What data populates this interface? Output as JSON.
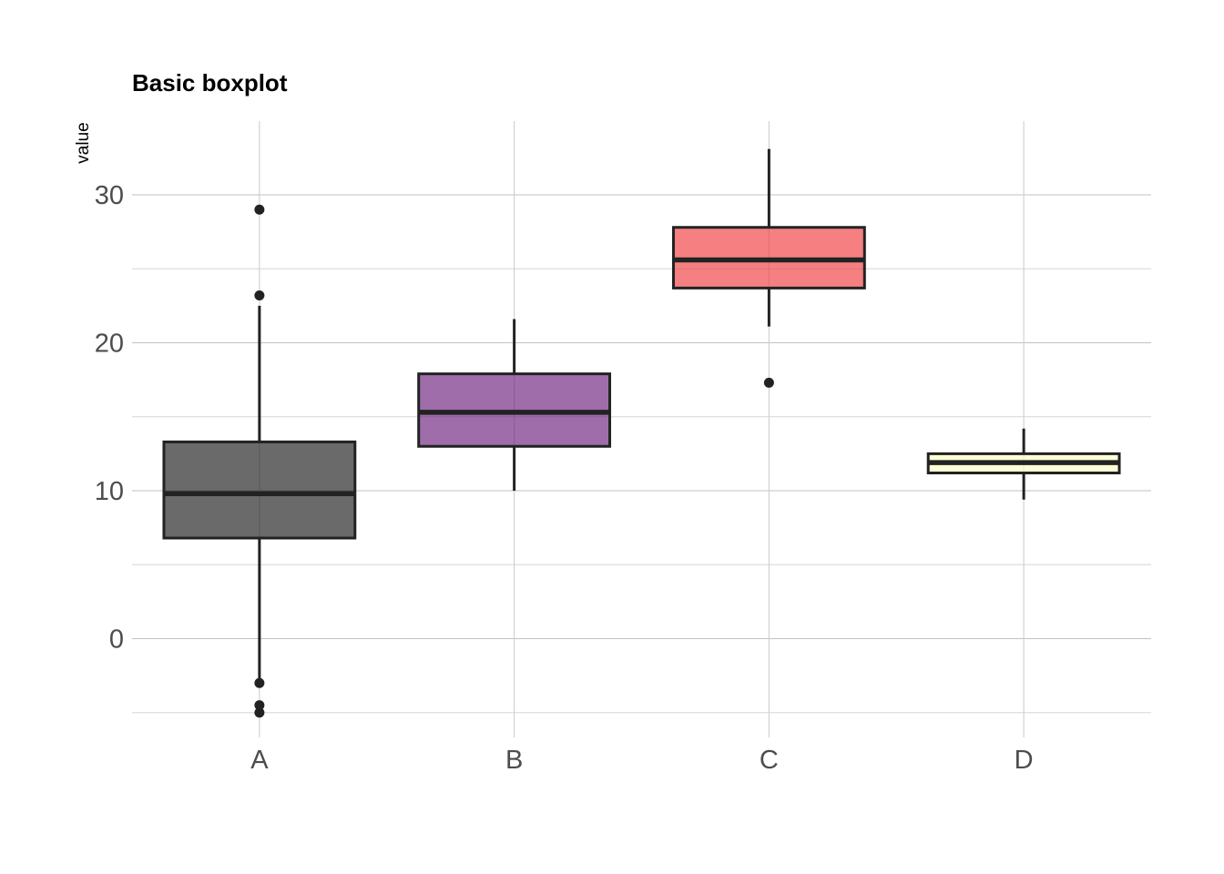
{
  "chart_data": {
    "type": "boxplot",
    "title": "Basic boxplot",
    "xlabel": "",
    "ylabel": "value",
    "ylim": [
      -5.8,
      35
    ],
    "yticks": [
      0,
      10,
      20,
      30
    ],
    "yticks_minor": [
      -5,
      5,
      15,
      25
    ],
    "categories": [
      "A",
      "B",
      "C",
      "D"
    ],
    "series": [
      {
        "name": "A",
        "color": "#1a1a1a",
        "whisker_low": -3.0,
        "q1": 6.8,
        "median": 9.8,
        "q3": 13.3,
        "whisker_high": 22.5,
        "outliers": [
          29.0,
          23.2,
          -3.0,
          -4.5,
          -5.0
        ]
      },
      {
        "name": "B",
        "color": "#6a1f7d",
        "whisker_low": 10.0,
        "q1": 13.0,
        "median": 15.3,
        "q3": 17.9,
        "whisker_high": 21.6,
        "outliers": []
      },
      {
        "name": "C",
        "color": "#ef3b3d",
        "whisker_low": 21.1,
        "q1": 23.7,
        "median": 25.6,
        "q3": 27.8,
        "whisker_high": 33.1,
        "outliers": [
          17.3
        ]
      },
      {
        "name": "D",
        "color": "#fcfdbf",
        "whisker_low": 9.4,
        "q1": 11.2,
        "median": 11.9,
        "q3": 12.5,
        "whisker_high": 14.2,
        "outliers": []
      }
    ],
    "fill_opacity": 0.65,
    "grid": true,
    "legend": "none"
  }
}
